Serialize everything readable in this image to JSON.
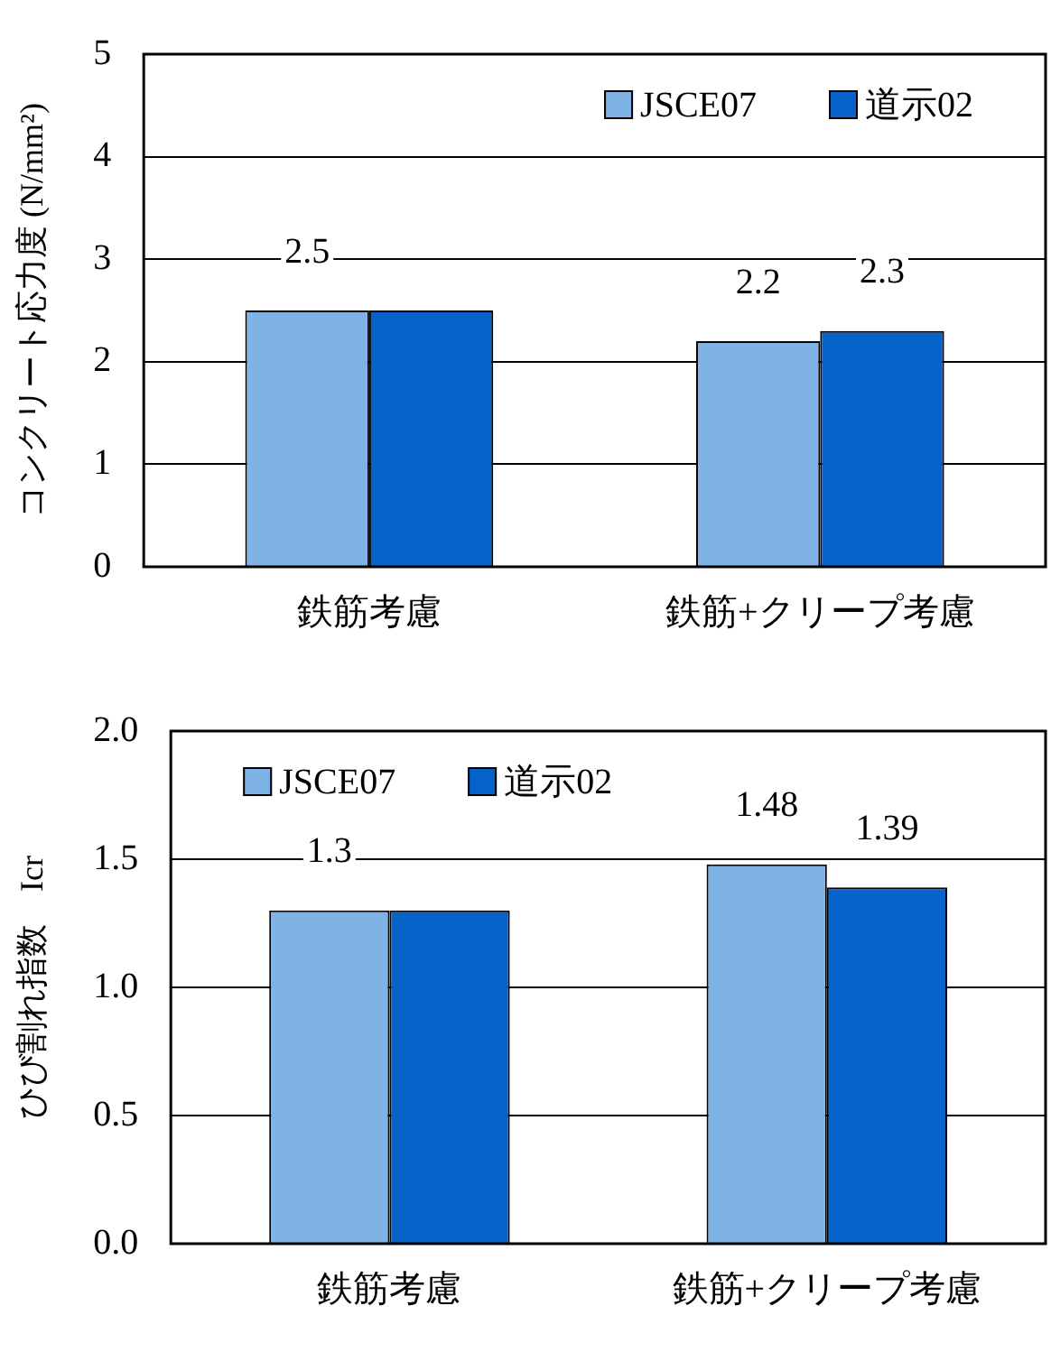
{
  "chart_data": [
    {
      "type": "bar",
      "ylabel": "コンクリート応力度 (N/mm²)",
      "categories": [
        "鉄筋考慮",
        "鉄筋+クリープ考慮"
      ],
      "series": [
        {
          "name": "JSCE07",
          "color": "#7fb2e5",
          "values": [
            2.5,
            2.2
          ],
          "value_labels": [
            "2.5",
            "2.2"
          ]
        },
        {
          "name": "道示02",
          "color": "#0563c9",
          "values": [
            2.5,
            2.3
          ],
          "value_labels": [
            null,
            "2.3"
          ]
        }
      ],
      "ylim": [
        0,
        5
      ],
      "yticks": [
        0,
        1,
        2,
        3,
        4,
        5
      ],
      "grid": "y",
      "legend": "top right"
    },
    {
      "type": "bar",
      "ylabel": "ひび割れ指数　Icr",
      "categories": [
        "鉄筋考慮",
        "鉄筋+クリープ考慮"
      ],
      "series": [
        {
          "name": "JSCE07",
          "color": "#7fb2e5",
          "values": [
            1.3,
            1.48
          ],
          "value_labels": [
            "1.3",
            "1.48"
          ]
        },
        {
          "name": "道示02",
          "color": "#0563c9",
          "values": [
            1.3,
            1.39
          ],
          "value_labels": [
            null,
            "1.39"
          ]
        }
      ],
      "ylim": [
        0,
        2
      ],
      "yticks": [
        {
          "value": 0,
          "label": "0.0"
        },
        {
          "value": 0.5,
          "label": "0.5"
        },
        {
          "value": 1,
          "label": "1.0"
        },
        {
          "value": 1.5,
          "label": "1.5"
        },
        {
          "value": 2,
          "label": "2.0"
        }
      ],
      "grid": "y",
      "legend": "top left"
    }
  ]
}
